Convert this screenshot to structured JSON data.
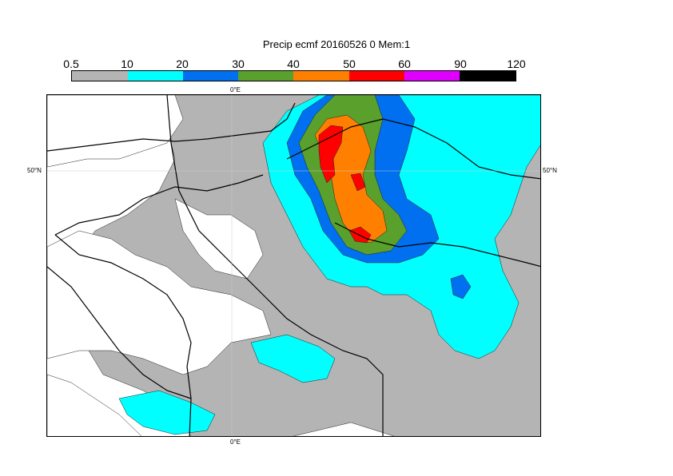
{
  "title": "Precip ecmf 20160526 0 Mem:1",
  "legend": {
    "ticks": [
      "0.5",
      "10",
      "20",
      "30",
      "40",
      "50",
      "60",
      "90",
      "120"
    ],
    "colors": [
      "#b4b4b4",
      "#00ffff",
      "#0070f0",
      "#5aa02c",
      "#ff8000",
      "#ff0000",
      "#e000ff",
      "#000000"
    ]
  },
  "map": {
    "lon_label_top": "0°E",
    "lon_label_bottom": "0°E",
    "lat_label_left": "50°N",
    "lat_label_right": "50°N"
  }
}
